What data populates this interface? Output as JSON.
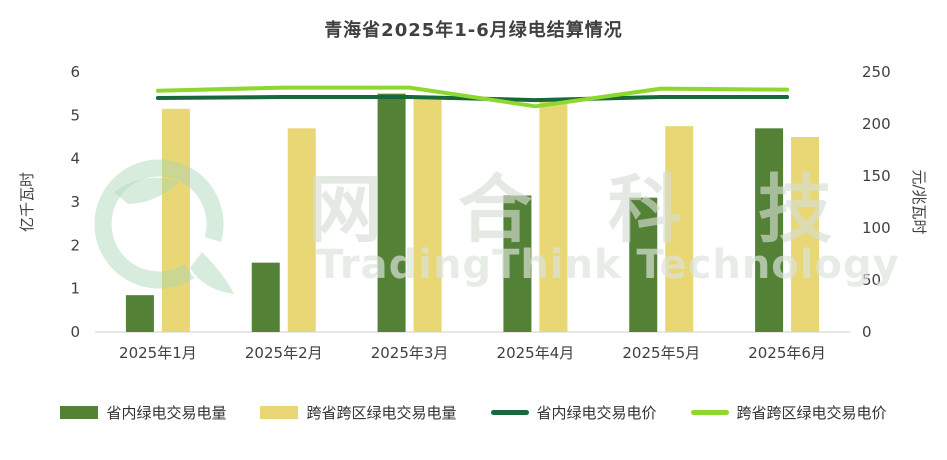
{
  "title": "青海省2025年1-6月绿电结算情况",
  "watermark": {
    "cn": "网合科技",
    "en": "TradingThink Technology"
  },
  "chart_data": {
    "type": "bar+line",
    "categories": [
      "2025年1月",
      "2025年2月",
      "2025年3月",
      "2025年4月",
      "2025年5月",
      "2025年6月"
    ],
    "left_axis": {
      "label": "亿千瓦时",
      "min": 0,
      "max": 6,
      "step": 1
    },
    "right_axis": {
      "label": "元/兆瓦时",
      "min": 0,
      "max": 250,
      "step": 50
    },
    "bar_series": [
      {
        "name": "省内绿电交易电量",
        "color": "#538135",
        "axis": "left",
        "values": [
          0.85,
          1.6,
          5.5,
          3.15,
          3.1,
          4.7
        ]
      },
      {
        "name": "跨省跨区绿电交易电量",
        "color": "#e8d774",
        "axis": "left",
        "values": [
          5.15,
          4.7,
          5.4,
          5.4,
          4.75,
          4.5
        ]
      }
    ],
    "line_series": [
      {
        "name": "省内绿电交易电价",
        "color": "#17683a",
        "axis": "right",
        "values": [
          225,
          226,
          226,
          223,
          226,
          226
        ]
      },
      {
        "name": "跨省跨区绿电交易电价",
        "color": "#8ed72e",
        "axis": "right",
        "values": [
          232,
          235,
          235,
          217,
          234,
          233
        ]
      }
    ],
    "grid": false,
    "legend_position": "bottom"
  }
}
